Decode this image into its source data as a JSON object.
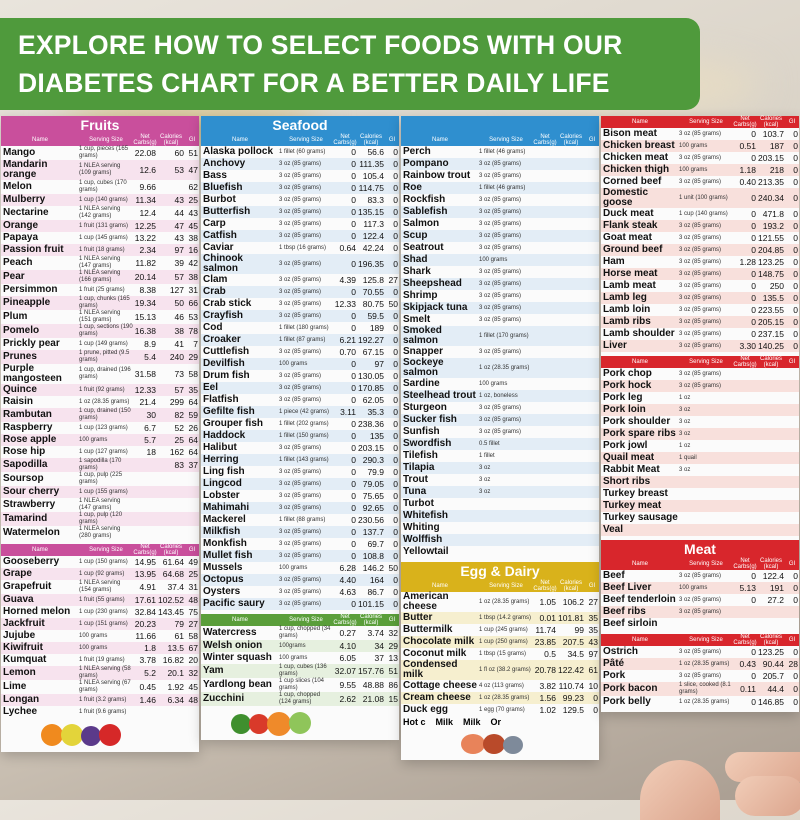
{
  "banner": {
    "line1": "EXPLORE HOW TO SELECT FOODS WITH OUR",
    "line2": "DIABETES CHART FOR A BETTER DAILY LIFE"
  },
  "colors": {
    "banner": "#4f9a3c",
    "vegetables": "#5a9e3a",
    "fruits": "#c94f9c",
    "seafood": "#2f8fcf",
    "meat": "#d8262c",
    "egg_dairy": "#d9b21b"
  },
  "headers": [
    "Name",
    "Serving Size",
    "Net Carbs(g)",
    "Calories (kcal)",
    "GI"
  ],
  "vegetables": {
    "rows": [
      [
        "Watercress",
        "1 cup, chopped (34 grams)",
        "0.27",
        "3.74",
        "32"
      ],
      [
        "Welsh onion",
        "100grams",
        "4.10",
        "34",
        "29"
      ],
      [
        "Winter squash",
        "100 grams",
        "6.05",
        "37",
        "13"
      ],
      [
        "Yam",
        "1 cup, cubes (136 grams)",
        "32.07",
        "157.76",
        "51"
      ],
      [
        "Yardlong bean",
        "1 cup slices (104 grams)",
        "9.55",
        "48.88",
        "86"
      ],
      [
        "Zucchini",
        "1 cup, chopped (124 grams)",
        "2.62",
        "21.08",
        "15"
      ]
    ]
  },
  "fruits": {
    "title": "Fruits",
    "left": [
      [
        "Gooseberry",
        "1 cup (150 grams)",
        "14.95",
        "61.64",
        "49"
      ],
      [
        "Grape",
        "1 cup (92 grams)",
        "13.95",
        "64.68",
        "25"
      ],
      [
        "Grapefruit",
        "1 NLEA serving (154 grams)",
        "4.91",
        "37.4",
        "31"
      ],
      [
        "Guava",
        "1 fruit (55 grams)",
        "17.61",
        "102.52",
        "48"
      ],
      [
        "Horned melon",
        "1 cup (230 grams)",
        "32.84",
        "143.45",
        "75"
      ],
      [
        "Jackfruit",
        "1 cup (151 grams)",
        "20.23",
        "79",
        "27"
      ],
      [
        "Jujube",
        "100 grams",
        "11.66",
        "61",
        "58"
      ],
      [
        "Kiwifruit",
        "100 grams",
        "1.8",
        "13.5",
        "67"
      ],
      [
        "Kumquat",
        "1 fruit (19 grams)",
        "3.78",
        "16.82",
        "20"
      ],
      [
        "Lemon",
        "1 NLEA serving (58 grams)",
        "5.2",
        "20.1",
        "32"
      ],
      [
        "Lime",
        "1 NLEA serving (67 grams)",
        "0.45",
        "1.92",
        "45"
      ],
      [
        "Longan",
        "1 fruit (3.2 grams)",
        "1.46",
        "6.34",
        "48"
      ],
      [
        "Lychee",
        "1 fruit (9.6 grams)",
        "",
        "",
        ""
      ]
    ],
    "right": [
      [
        "Mango",
        "1 cup, pieces (165 grams)",
        "22.08",
        "60",
        "51"
      ],
      [
        "Mandarin orange",
        "1 NLEA serving (109 grams)",
        "12.6",
        "53",
        "47"
      ],
      [
        "Melon",
        "1 cup, cubes (170 grams)",
        "9.66",
        "",
        "62"
      ],
      [
        "Mulberry",
        "1 cup (140 grams)",
        "11.34",
        "43",
        "25"
      ],
      [
        "Nectarine",
        "1 NLEA serving (142 grams)",
        "12.4",
        "44",
        "43"
      ],
      [
        "Orange",
        "1 fruit (131 grams)",
        "12.25",
        "47",
        "45"
      ],
      [
        "Papaya",
        "1 cup (145 grams)",
        "13.22",
        "43",
        "38"
      ],
      [
        "Passion fruit",
        "1 fruit (18 grams)",
        "2.34",
        "97",
        "16"
      ],
      [
        "Peach",
        "1 NLEA serving (147 grams)",
        "11.82",
        "39",
        "42"
      ],
      [
        "Pear",
        "1 NLEA serving (166 grams)",
        "20.14",
        "57",
        "38"
      ],
      [
        "Persimmon",
        "1 fruit (25 grams)",
        "8.38",
        "127",
        "31"
      ],
      [
        "Pineapple",
        "1 cup, chunks (165 grams)",
        "19.34",
        "50",
        "66"
      ],
      [
        "Plum",
        "1 NLEA serving (151 grams)",
        "15.13",
        "46",
        "53"
      ],
      [
        "Pomelo",
        "1 cup, sections (190 grams)",
        "16.38",
        "38",
        "78"
      ],
      [
        "Prickly pear",
        "1 cup (149 grams)",
        "8.9",
        "41",
        "7"
      ],
      [
        "Prunes",
        "1 prune, pitted (9.5 grams)",
        "5.4",
        "240",
        "29"
      ],
      [
        "Purple mangosteen",
        "1 cup, drained (196 grams)",
        "31.58",
        "73",
        "58"
      ],
      [
        "Quince",
        "1 fruit (92 grams)",
        "12.33",
        "57",
        "35"
      ],
      [
        "Raisin",
        "1 oz (28.35 grams)",
        "21.4",
        "299",
        "64"
      ],
      [
        "Rambutan",
        "1 cup, drained (150 grams)",
        "30",
        "82",
        "59"
      ],
      [
        "Raspberry",
        "1 cup (123 grams)",
        "6.7",
        "52",
        "26"
      ],
      [
        "Rose apple",
        "100 grams",
        "5.7",
        "25",
        "64"
      ],
      [
        "Rose hip",
        "1 cup (127 grams)",
        "18",
        "162",
        "64"
      ],
      [
        "Sapodilla",
        "1 sapodilla (170 grams)",
        "",
        "83",
        "37"
      ],
      [
        "Soursop",
        "1 cup, pulp (225 grams)",
        "",
        "",
        ""
      ],
      [
        "Sour cherry",
        "1 cup (155 grams)",
        "",
        "",
        ""
      ],
      [
        "Strawberry",
        "1 NLEA serving (147 grams)",
        "",
        "",
        ""
      ],
      [
        "Tamarind",
        "1 cup, pulp (120 grams)",
        "",
        "",
        ""
      ],
      [
        "Watermelon",
        "1 NLEA serving (280 grams)",
        "",
        "",
        ""
      ]
    ]
  },
  "seafood": {
    "title": "Seafood",
    "left": [
      [
        "Alaska pollock",
        "1 fillet (60 grams)",
        "0",
        "56.6",
        "0"
      ],
      [
        "Anchovy",
        "3 oz (85 grams)",
        "0",
        "111.35",
        "0"
      ],
      [
        "Bass",
        "3 oz (85 grams)",
        "0",
        "105.4",
        "0"
      ],
      [
        "Bluefish",
        "3 oz (85 grams)",
        "0",
        "114.75",
        "0"
      ],
      [
        "Burbot",
        "3 oz (85 grams)",
        "0",
        "83.3",
        "0"
      ],
      [
        "Butterfish",
        "3 oz (85 grams)",
        "0",
        "135.15",
        "0"
      ],
      [
        "Carp",
        "3 oz (85 grams)",
        "0",
        "117.3",
        "0"
      ],
      [
        "Catfish",
        "3 oz (85 grams)",
        "0",
        "122.4",
        "0"
      ],
      [
        "Caviar",
        "1 tbsp (16 grams)",
        "0.64",
        "42.24",
        "0"
      ],
      [
        "Chinook salmon",
        "3 oz (85 grams)",
        "0",
        "196.35",
        "0"
      ],
      [
        "Clam",
        "3 oz (85 grams)",
        "4.39",
        "125.8",
        "27"
      ],
      [
        "Crab",
        "3 oz (85 grams)",
        "0",
        "70.55",
        "0"
      ],
      [
        "Crab stick",
        "3 oz (85 grams)",
        "12.33",
        "80.75",
        "50"
      ],
      [
        "Crayfish",
        "3 oz (85 grams)",
        "0",
        "59.5",
        "0"
      ],
      [
        "Cod",
        "1 fillet (180 grams)",
        "0",
        "189",
        "0"
      ],
      [
        "Croaker",
        "1 fillet (87 grams)",
        "6.21",
        "192.27",
        "0"
      ],
      [
        "Cuttlefish",
        "3 oz (85 grams)",
        "0.70",
        "67.15",
        "0"
      ],
      [
        "Devilfish",
        "100 grams",
        "0",
        "97",
        "0"
      ],
      [
        "Drum fish",
        "3 oz (85 grams)",
        "0",
        "130.05",
        "0"
      ],
      [
        "Eel",
        "3 oz (85 grams)",
        "0",
        "170.85",
        "0"
      ],
      [
        "Flatfish",
        "3 oz (85 grams)",
        "0",
        "62.05",
        "0"
      ],
      [
        "Gefilte fish",
        "1 piece (42 grams)",
        "3.11",
        "35.3",
        "0"
      ],
      [
        "Grouper fish",
        "1 fillet (202 grams)",
        "0",
        "238.36",
        "0"
      ],
      [
        "Haddock",
        "1 fillet (150 grams)",
        "0",
        "135",
        "0"
      ],
      [
        "Halibut",
        "3 oz (85 grams)",
        "0",
        "203.15",
        "0"
      ],
      [
        "Herring",
        "1 fillet (143 grams)",
        "0",
        "290.3",
        "0"
      ],
      [
        "Ling fish",
        "3 oz (85 grams)",
        "0",
        "79.9",
        "0"
      ],
      [
        "Lingcod",
        "3 oz (85 grams)",
        "0",
        "79.05",
        "0"
      ],
      [
        "Lobster",
        "3 oz (85 grams)",
        "0",
        "75.65",
        "0"
      ],
      [
        "Mahimahi",
        "3 oz (85 grams)",
        "0",
        "92.65",
        "0"
      ],
      [
        "Mackerel",
        "1 fillet (88 grams)",
        "0",
        "230.56",
        "0"
      ],
      [
        "Milkfish",
        "3 oz (85 grams)",
        "0",
        "137.7",
        "0"
      ],
      [
        "Monkfish",
        "3 oz (85 grams)",
        "0",
        "69.7",
        "0"
      ],
      [
        "Mullet fish",
        "3 oz (85 grams)",
        "0",
        "108.8",
        "0"
      ],
      [
        "Mussels",
        "100 grams",
        "6.28",
        "146.2",
        "50"
      ],
      [
        "Octopus",
        "3 oz (85 grams)",
        "4.40",
        "164",
        "0"
      ],
      [
        "Oysters",
        "3 oz (85 grams)",
        "4.63",
        "86.7",
        "0"
      ],
      [
        "Pacific saury",
        "3 oz (85 grams)",
        "0",
        "101.15",
        "0"
      ]
    ],
    "right": [
      [
        "Perch",
        "1 fillet (46 grams)",
        "",
        "",
        ""
      ],
      [
        "Pompano",
        "3 oz (85 grams)",
        "",
        "",
        ""
      ],
      [
        "Rainbow trout",
        "3 oz (85 grams)",
        "",
        "",
        ""
      ],
      [
        "Roe",
        "1 fillet (46 grams)",
        "",
        "",
        ""
      ],
      [
        "Rockfish",
        "3 oz (85 grams)",
        "",
        "",
        ""
      ],
      [
        "Sablefish",
        "3 oz (85 grams)",
        "",
        "",
        ""
      ],
      [
        "Salmon",
        "3 oz (85 grams)",
        "",
        "",
        ""
      ],
      [
        "Scup",
        "3 oz (85 grams)",
        "",
        "",
        ""
      ],
      [
        "Seatrout",
        "3 oz (85 grams)",
        "",
        "",
        ""
      ],
      [
        "Shad",
        "100 grams",
        "",
        "",
        ""
      ],
      [
        "Shark",
        "3 oz (85 grams)",
        "",
        "",
        ""
      ],
      [
        "Sheepshead",
        "3 oz (85 grams)",
        "",
        "",
        ""
      ],
      [
        "Shrimp",
        "3 oz (85 grams)",
        "",
        "",
        ""
      ],
      [
        "Skipjack tuna",
        "3 oz (85 grams)",
        "",
        "",
        ""
      ],
      [
        "Smelt",
        "3 oz (85 grams)",
        "",
        "",
        ""
      ],
      [
        "Smoked salmon",
        "1 fillet (170 grams)",
        "",
        "",
        ""
      ],
      [
        "Snapper",
        "3 oz (85 grams)",
        "",
        "",
        ""
      ],
      [
        "Sockeye salmon",
        "1 oz (28.35 grams)",
        "",
        "",
        ""
      ],
      [
        "Sardine",
        "100 grams",
        "",
        "",
        ""
      ],
      [
        "Steelhead trout",
        "1 oz, boneless",
        "",
        "",
        ""
      ],
      [
        "Sturgeon",
        "3 oz (85 grams)",
        "",
        "",
        ""
      ],
      [
        "Sucker fish",
        "3 oz (85 grams)",
        "",
        "",
        ""
      ],
      [
        "Sunfish",
        "3 oz (85 grams)",
        "",
        "",
        ""
      ],
      [
        "Swordfish",
        "0.5 fillet",
        "",
        "",
        ""
      ],
      [
        "Tilefish",
        "1 fillet",
        "",
        "",
        ""
      ],
      [
        "Tilapia",
        "3 oz",
        "",
        "",
        ""
      ],
      [
        "Trout",
        "3 oz",
        "",
        "",
        ""
      ],
      [
        "Tuna",
        "3 oz",
        "",
        "",
        ""
      ],
      [
        "Turbot",
        "",
        "",
        "",
        ""
      ],
      [
        "Whitefish",
        "",
        "",
        "",
        ""
      ],
      [
        "Whiting",
        "",
        "",
        "",
        ""
      ],
      [
        "Wolffish",
        "",
        "",
        "",
        ""
      ],
      [
        "Yellowtail",
        "",
        "",
        "",
        ""
      ]
    ]
  },
  "meat_top": {
    "left": [
      [
        "Bison meat",
        "3 oz (85 grams)",
        "0",
        "103.7",
        "0"
      ],
      [
        "Chicken breast",
        "100 grams",
        "0.51",
        "187",
        "0"
      ],
      [
        "Chicken meat",
        "3 oz (85 grams)",
        "0",
        "203.15",
        "0"
      ],
      [
        "Chicken thigh",
        "100 grams",
        "1.18",
        "218",
        "0"
      ],
      [
        "Corned beef",
        "3 oz (85 grams)",
        "0.40",
        "213.35",
        "0"
      ],
      [
        "Domestic goose",
        "1 unit (100 grams)",
        "0",
        "240.34",
        "0"
      ],
      [
        "Duck meat",
        "1 cup (140 grams)",
        "0",
        "471.8",
        "0"
      ],
      [
        "Flank steak",
        "3 oz (85 grams)",
        "0",
        "193.2",
        "0"
      ],
      [
        "Goat meat",
        "3 oz (85 grams)",
        "0",
        "121.55",
        "0"
      ],
      [
        "Ground beef",
        "3 oz (85 grams)",
        "0",
        "204.85",
        "0"
      ],
      [
        "Ham",
        "3 oz (85 grams)",
        "1.28",
        "123.25",
        "0"
      ],
      [
        "Horse meat",
        "3 oz (85 grams)",
        "0",
        "148.75",
        "0"
      ],
      [
        "Lamb meat",
        "3 oz (85 grams)",
        "0",
        "250",
        "0"
      ],
      [
        "Lamb leg",
        "3 oz (85 grams)",
        "0",
        "135.5",
        "0"
      ],
      [
        "Lamb loin",
        "3 oz (85 grams)",
        "0",
        "223.55",
        "0"
      ],
      [
        "Lamb ribs",
        "3 oz (85 grams)",
        "0",
        "205.15",
        "0"
      ],
      [
        "Lamb shoulder",
        "3 oz (85 grams)",
        "0",
        "237.15",
        "0"
      ],
      [
        "Liver",
        "3 oz (85 grams)",
        "3.30",
        "140.25",
        "0"
      ]
    ],
    "right": [
      [
        "Pork chop",
        "3 oz (85 grams)",
        "",
        "",
        ""
      ],
      [
        "Pork hock",
        "3 oz (85 grams)",
        "",
        "",
        ""
      ],
      [
        "Pork leg",
        "1 oz",
        "",
        "",
        ""
      ],
      [
        "Pork loin",
        "3 oz",
        "",
        "",
        ""
      ],
      [
        "Pork shoulder",
        "3 oz",
        "",
        "",
        ""
      ],
      [
        "Pork spare ribs",
        "3 oz",
        "",
        "",
        ""
      ],
      [
        "Pork jowl",
        "1 oz",
        "",
        "",
        ""
      ],
      [
        "Quail meat",
        "1 quail",
        "",
        "",
        ""
      ],
      [
        "Rabbit Meat",
        "3 oz",
        "",
        "",
        ""
      ],
      [
        "Short ribs",
        "",
        "",
        "",
        ""
      ],
      [
        "Turkey breast",
        "",
        "",
        "",
        ""
      ],
      [
        "Turkey meat",
        "",
        "",
        "",
        ""
      ],
      [
        "Turkey sausage",
        "",
        "",
        "",
        ""
      ],
      [
        "Veal",
        "",
        "",
        "",
        ""
      ]
    ]
  },
  "egg_dairy": {
    "title": "Egg & Dairy",
    "rows": [
      [
        "American cheese",
        "1 oz (28.35 grams)",
        "1.05",
        "106.2",
        "27"
      ],
      [
        "Butter",
        "1 tbsp (14.2 grams)",
        "0.01",
        "101.81",
        "35"
      ],
      [
        "Buttermilk",
        "1 cup (245 grams)",
        "11.74",
        "99",
        "35"
      ],
      [
        "Chocolate milk",
        "1 cup (250 grams)",
        "23.85",
        "207.5",
        "43"
      ],
      [
        "Coconut milk",
        "1 tbsp (15 grams)",
        "0.5",
        "34.5",
        "97"
      ],
      [
        "Condensed milk",
        "1 fl oz (38.2 grams)",
        "20.78",
        "122.42",
        "61"
      ],
      [
        "Cottage cheese",
        "4 oz (113 grams)",
        "3.82",
        "110.74",
        "10"
      ],
      [
        "Cream cheese",
        "1 oz (28.35 grams)",
        "1.56",
        "99.23",
        "0"
      ],
      [
        "Duck egg",
        "1 egg (70 grams)",
        "1.02",
        "129.5",
        "0"
      ]
    ],
    "partial": [
      "Hot c",
      "Milk",
      "Milk",
      "Or"
    ]
  },
  "meat_bottom": {
    "title": "Meat",
    "left": [
      [
        "Beef",
        "3 oz (85 grams)",
        "0",
        "122.4",
        "0"
      ],
      [
        "Beef Liver",
        "100 grams",
        "5.13",
        "191",
        "0"
      ],
      [
        "Beef tenderloin",
        "3 oz (85 grams)",
        "0",
        "27.2",
        "0"
      ],
      [
        "Beef ribs",
        "3 oz (85 grams)",
        "",
        "",
        ""
      ],
      [
        "Beef sirloin",
        "",
        "",
        "",
        ""
      ]
    ],
    "right": [
      [
        "Ostrich",
        "3 oz (85 grams)",
        "0",
        "123.25",
        "0"
      ],
      [
        "Pâté",
        "1 oz (28.35 grams)",
        "0.43",
        "90.44",
        "28"
      ],
      [
        "Pork",
        "3 oz (85 grams)",
        "0",
        "205.7",
        "0"
      ],
      [
        "Pork bacon",
        "1 slice, cooked (8.1 grams)",
        "0.11",
        "44.4",
        "0"
      ],
      [
        "Pork belly",
        "1 oz (28.35 grams)",
        "0",
        "146.85",
        "0"
      ]
    ]
  }
}
